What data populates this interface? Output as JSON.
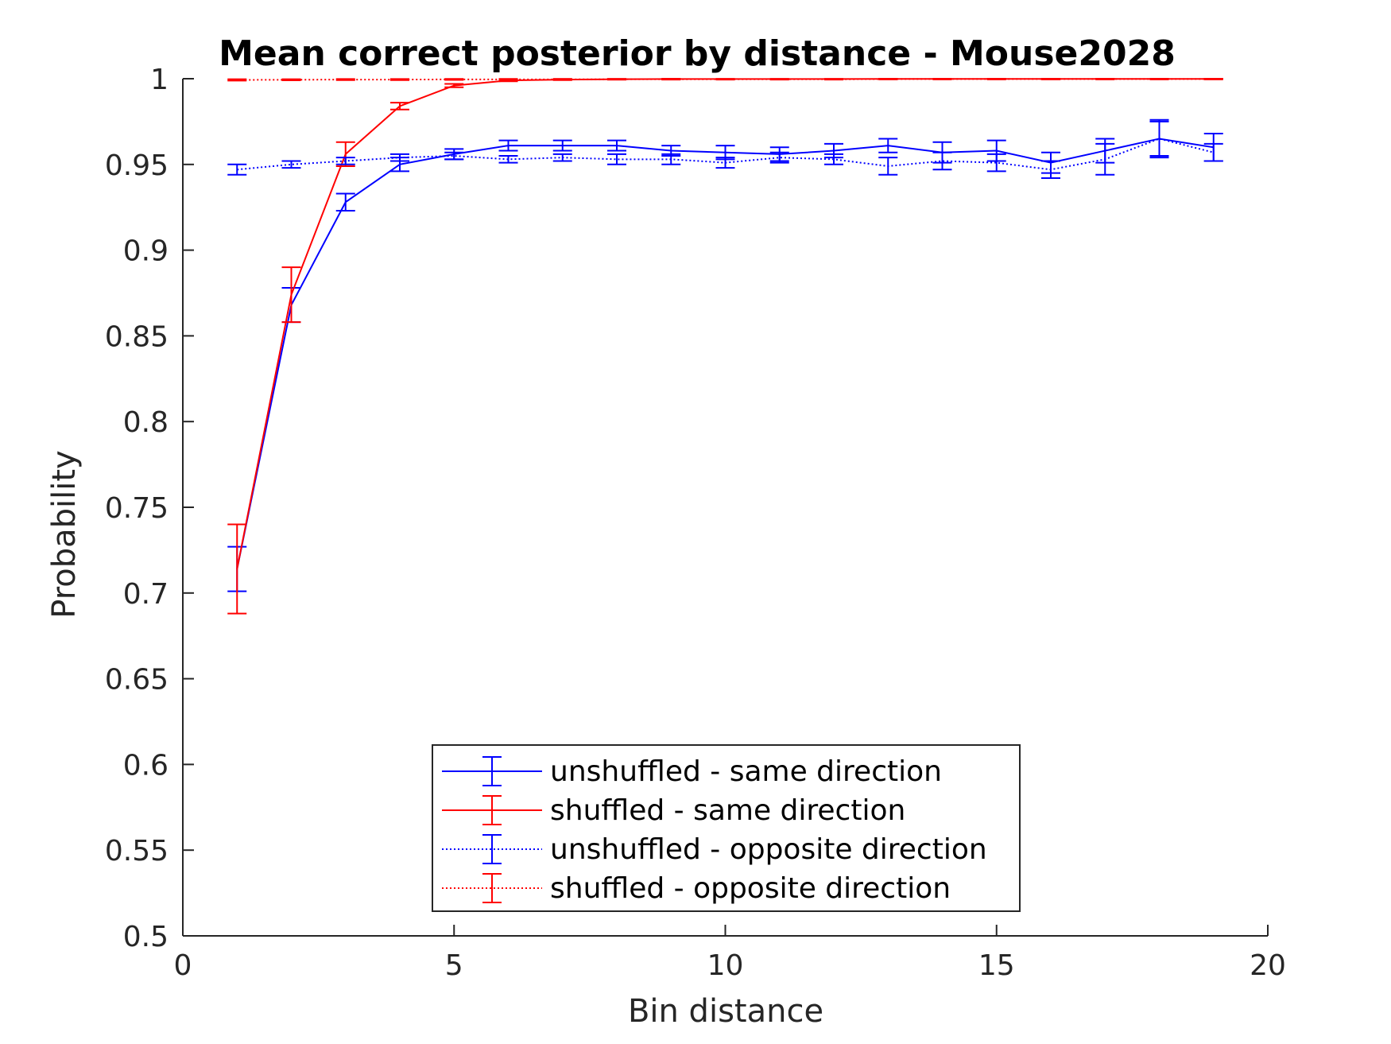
{
  "chart_data": {
    "type": "line",
    "title": "Mean correct posterior by distance - Mouse2028",
    "xlabel": "Bin distance",
    "ylabel": "Probability",
    "xlim": [
      0,
      20
    ],
    "ylim": [
      0.5,
      1
    ],
    "xticks": [
      0,
      5,
      10,
      15,
      20
    ],
    "xtick_labels": [
      "0",
      "5",
      "10",
      "15",
      "20"
    ],
    "yticks": [
      0.5,
      0.55,
      0.6,
      0.65,
      0.7,
      0.75,
      0.8,
      0.85,
      0.9,
      0.95,
      1
    ],
    "ytick_labels": [
      "0.5",
      "0.55",
      "0.6",
      "0.65",
      "0.7",
      "0.75",
      "0.8",
      "0.85",
      "0.9",
      "0.95",
      "1"
    ],
    "grid": false,
    "legend_position": "bottom-center",
    "x": [
      1,
      2,
      3,
      4,
      5,
      6,
      7,
      8,
      9,
      10,
      11,
      12,
      13,
      14,
      15,
      16,
      17,
      18,
      19
    ],
    "series": [
      {
        "name": "unshuffled - same direction",
        "color": "#0000ff",
        "line_style": "solid",
        "values": [
          0.714,
          0.868,
          0.928,
          0.95,
          0.956,
          0.961,
          0.961,
          0.961,
          0.958,
          0.957,
          0.956,
          0.958,
          0.961,
          0.957,
          0.958,
          0.951,
          0.958,
          0.965,
          0.96
        ],
        "errors": [
          0.013,
          0.01,
          0.005,
          0.004,
          0.003,
          0.003,
          0.003,
          0.003,
          0.003,
          0.004,
          0.004,
          0.004,
          0.004,
          0.006,
          0.006,
          0.006,
          0.007,
          0.011,
          0.008
        ]
      },
      {
        "name": "shuffled - same direction",
        "color": "#ff0000",
        "line_style": "solid",
        "values": [
          0.714,
          0.874,
          0.956,
          0.984,
          0.996,
          0.999,
          0.9995,
          0.9997,
          0.9998,
          0.9998,
          0.9998,
          0.9998,
          0.9999,
          0.9999,
          0.9999,
          0.9999,
          0.9999,
          0.9999,
          0.9999
        ],
        "errors": [
          0.026,
          0.016,
          0.007,
          0.002,
          0.001,
          0.0005,
          0.0003,
          0.0002,
          0.0002,
          0.0001,
          0.0001,
          0.0001,
          0.0001,
          0.0001,
          0.0001,
          0.0001,
          0.0001,
          0.0001,
          0.0001
        ]
      },
      {
        "name": "unshuffled - opposite direction",
        "color": "#0000ff",
        "line_style": "dotted",
        "values": [
          0.947,
          0.95,
          0.952,
          0.954,
          0.955,
          0.953,
          0.954,
          0.953,
          0.953,
          0.951,
          0.954,
          0.953,
          0.949,
          0.952,
          0.951,
          0.947,
          0.953,
          0.965,
          0.957
        ],
        "errors": [
          0.003,
          0.002,
          0.002,
          0.002,
          0.002,
          0.002,
          0.002,
          0.003,
          0.003,
          0.003,
          0.003,
          0.003,
          0.005,
          0.005,
          0.005,
          0.005,
          0.009,
          0.01,
          0.005
        ]
      },
      {
        "name": "shuffled - opposite direction",
        "color": "#ff0000",
        "line_style": "dotted",
        "values": [
          0.9993,
          0.9994,
          0.9995,
          0.9995,
          0.9996,
          0.9996,
          0.9996,
          0.9997,
          0.9997,
          0.9997,
          0.9997,
          0.9997,
          0.9998,
          0.9998,
          0.9998,
          0.9998,
          0.9998,
          0.9998,
          0.9998
        ],
        "errors": [
          0.0004,
          0.0003,
          0.0003,
          0.0003,
          0.0003,
          0.0003,
          0.0003,
          0.0002,
          0.0002,
          0.0002,
          0.0002,
          0.0002,
          0.0002,
          0.0002,
          0.0002,
          0.0002,
          0.0002,
          0.0002,
          0.0002
        ]
      }
    ]
  }
}
